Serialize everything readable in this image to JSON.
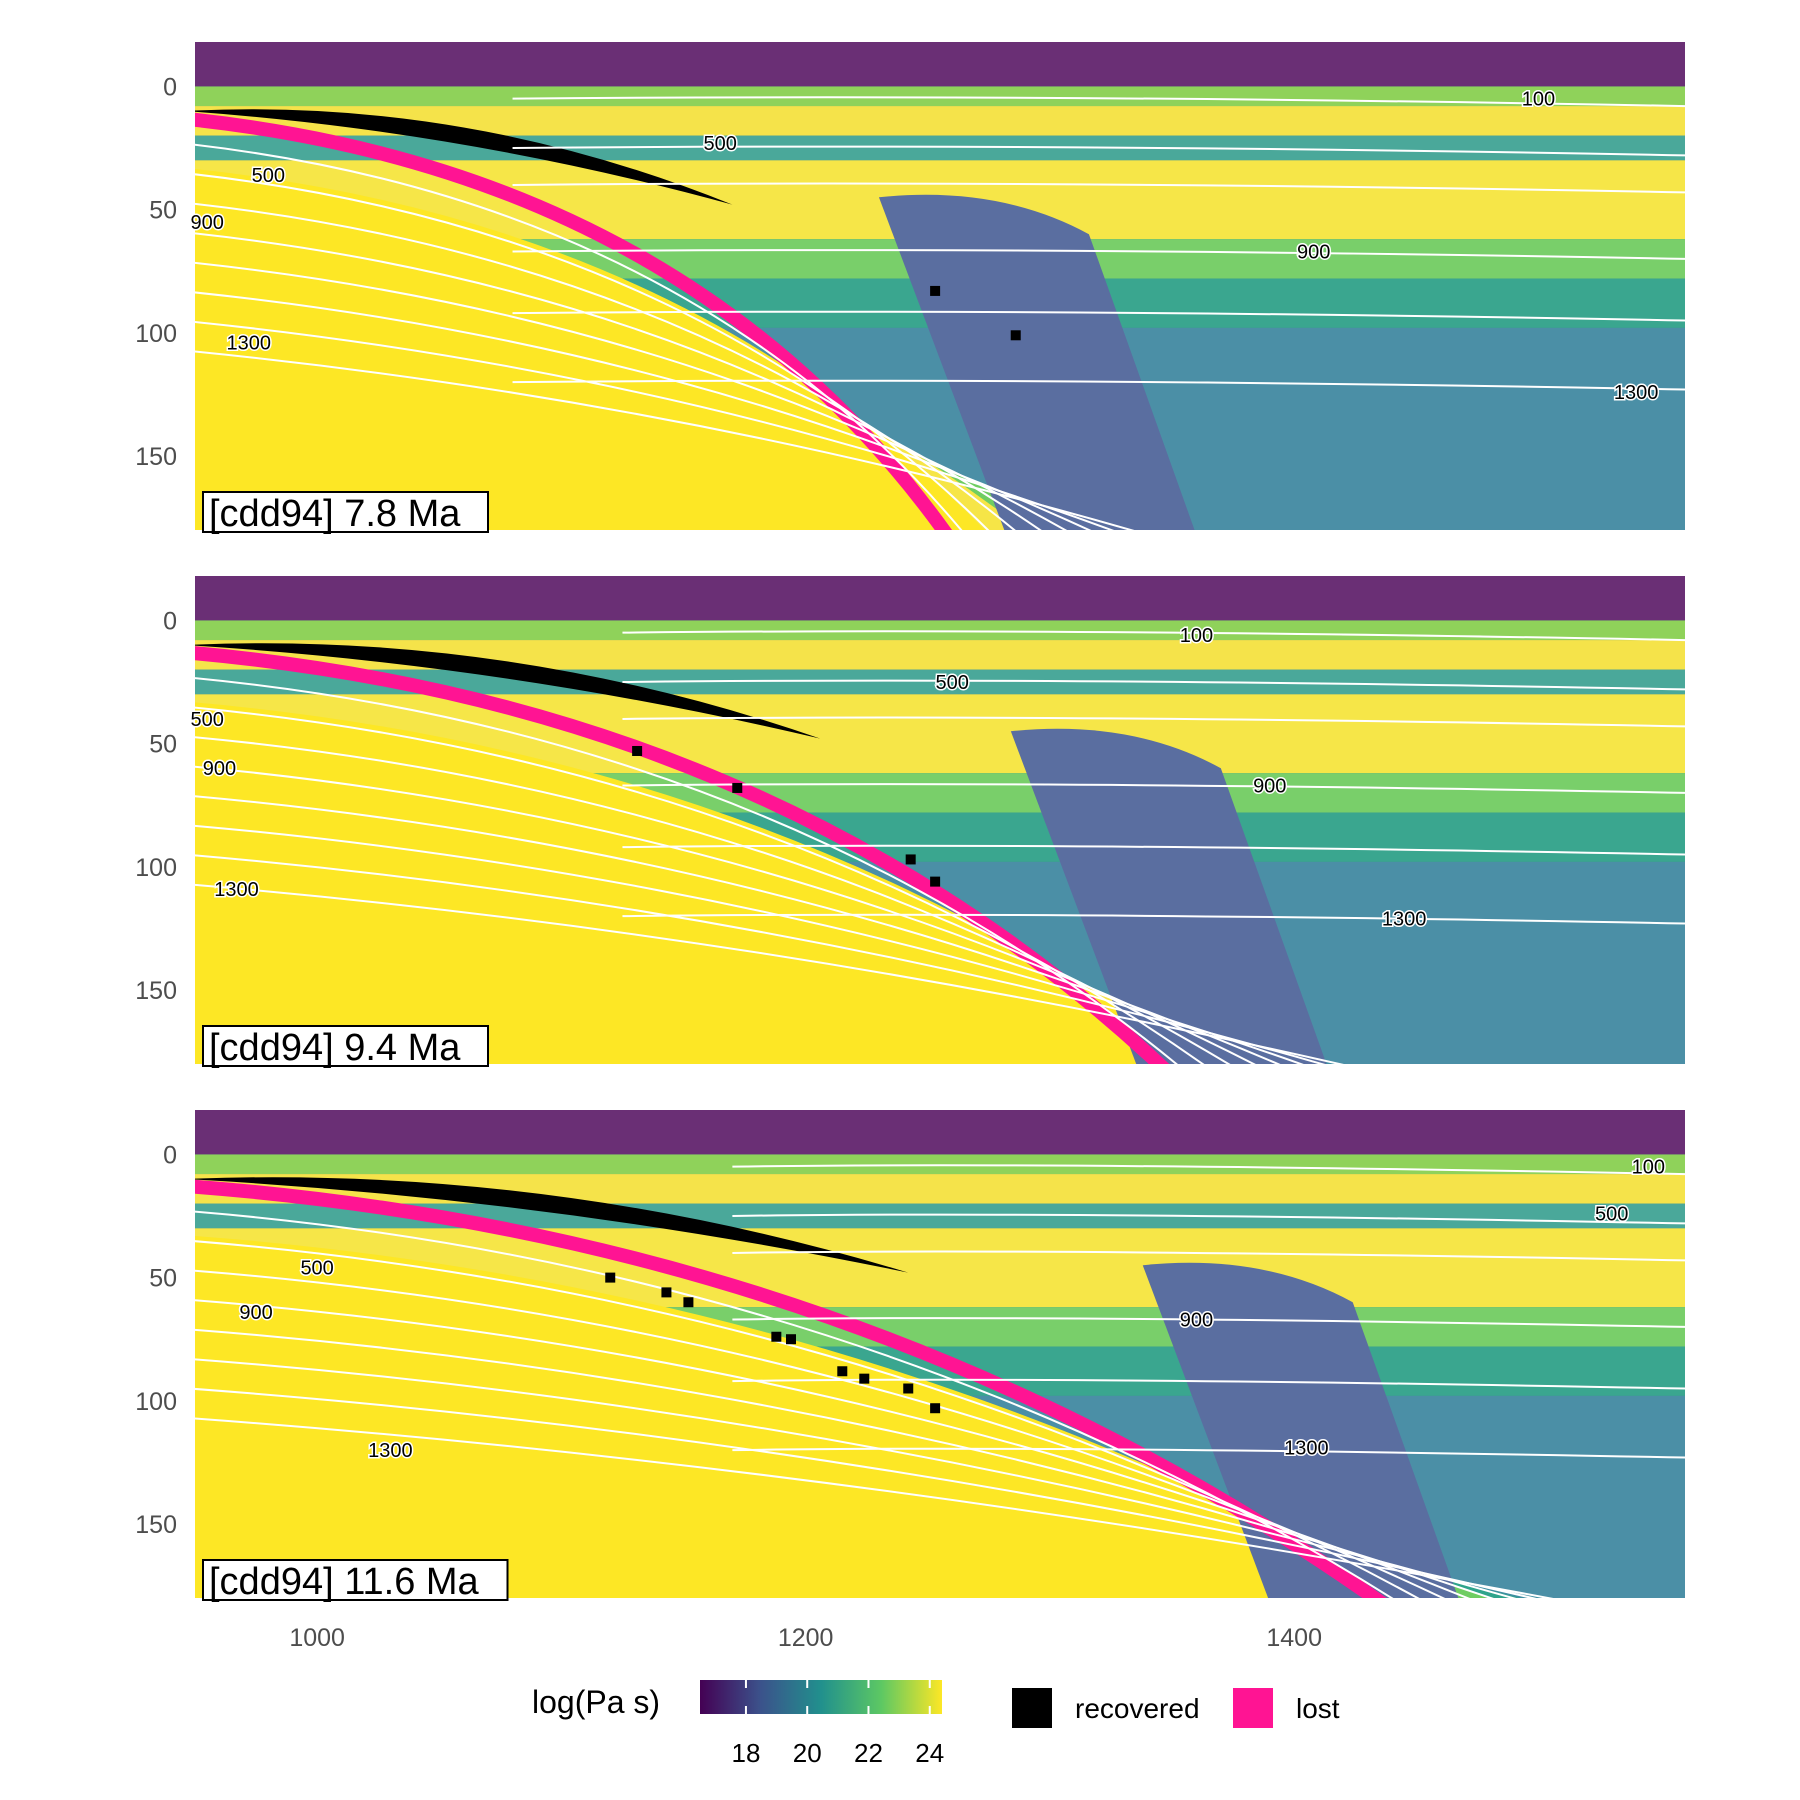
{
  "chart_data": [
    {
      "type": "heatmap",
      "title": "[cdd94] 7.8 Ma",
      "xlim": [
        950,
        1560
      ],
      "ylim": [
        180,
        -18
      ],
      "y_ticks": [
        0,
        50,
        100,
        150
      ],
      "isotherm_labels": [
        {
          "label": "100",
          "x": 1500,
          "y": 5
        },
        {
          "label": "500",
          "x": 1165,
          "y": 23
        },
        {
          "label": "500",
          "x": 980,
          "y": 36
        },
        {
          "label": "900",
          "x": 955,
          "y": 55
        },
        {
          "label": "900",
          "x": 1408,
          "y": 67
        },
        {
          "label": "1300",
          "x": 972,
          "y": 104
        },
        {
          "label": "1300",
          "x": 1540,
          "y": 124
        }
      ],
      "recovered_points": [
        [
          1253,
          83
        ],
        [
          1286,
          101
        ]
      ]
    },
    {
      "type": "heatmap",
      "title": "[cdd94] 9.4 Ma",
      "xlim": [
        950,
        1560
      ],
      "ylim": [
        180,
        -18
      ],
      "y_ticks": [
        0,
        50,
        100,
        150
      ],
      "isotherm_labels": [
        {
          "label": "100",
          "x": 1360,
          "y": 6
        },
        {
          "label": "500",
          "x": 1260,
          "y": 25
        },
        {
          "label": "500",
          "x": 955,
          "y": 40
        },
        {
          "label": "900",
          "x": 960,
          "y": 60
        },
        {
          "label": "900",
          "x": 1390,
          "y": 67
        },
        {
          "label": "1300",
          "x": 967,
          "y": 109
        },
        {
          "label": "1300",
          "x": 1445,
          "y": 121
        }
      ],
      "recovered_points": [
        [
          1131,
          53
        ],
        [
          1172,
          68
        ],
        [
          1243,
          97
        ],
        [
          1253,
          106
        ]
      ]
    },
    {
      "type": "heatmap",
      "title": "[cdd94] 11.6 Ma",
      "xlim": [
        950,
        1560
      ],
      "ylim": [
        180,
        -18
      ],
      "y_ticks": [
        0,
        50,
        100,
        150
      ],
      "isotherm_labels": [
        {
          "label": "100",
          "x": 1545,
          "y": 5
        },
        {
          "label": "500",
          "x": 1530,
          "y": 24
        },
        {
          "label": "500",
          "x": 1000,
          "y": 46
        },
        {
          "label": "900",
          "x": 975,
          "y": 64
        },
        {
          "label": "900",
          "x": 1360,
          "y": 67
        },
        {
          "label": "1300",
          "x": 1030,
          "y": 120
        },
        {
          "label": "1300",
          "x": 1405,
          "y": 119
        }
      ],
      "recovered_points": [
        [
          1120,
          50
        ],
        [
          1143,
          56
        ],
        [
          1152,
          60
        ],
        [
          1188,
          74
        ],
        [
          1194,
          75
        ],
        [
          1215,
          88
        ],
        [
          1224,
          91
        ],
        [
          1242,
          95
        ],
        [
          1253,
          103
        ]
      ]
    }
  ],
  "x_ticks": [
    1000,
    1200,
    1400
  ],
  "legend": {
    "colorbar_title": "log(Pa s)",
    "colorbar_range": [
      16.5,
      24.4
    ],
    "colorbar_ticks": [
      18,
      20,
      22,
      24
    ],
    "colorbar_colors": [
      "#440154",
      "#3b528b",
      "#21908d",
      "#5dc863",
      "#fde725"
    ],
    "items": [
      {
        "label": "recovered",
        "color": "#000000"
      },
      {
        "label": "lost",
        "color": "#ff1493"
      }
    ]
  }
}
